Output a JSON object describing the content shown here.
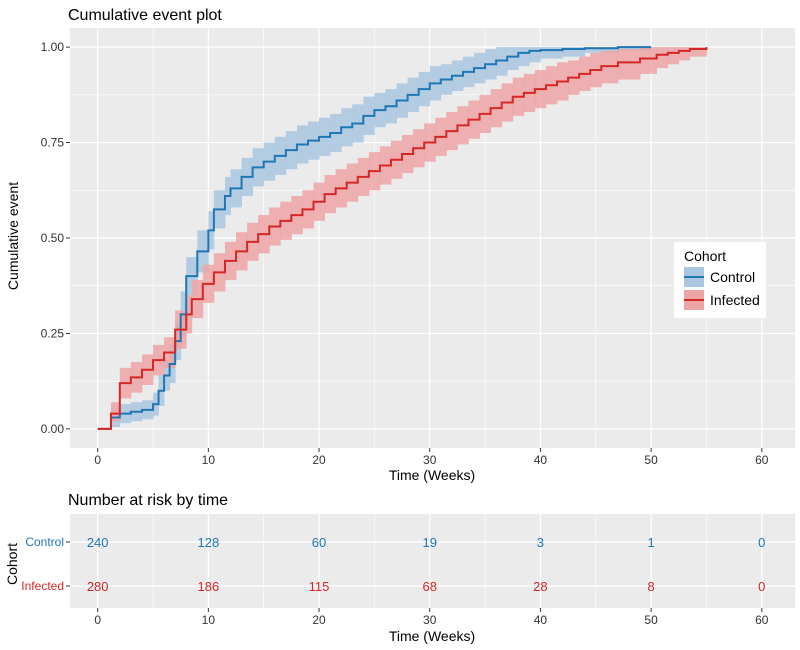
{
  "colors": {
    "panel_bg": "#EBEBEB",
    "grid": "#FFFFFF",
    "tick_text": "#333333",
    "axis_text": "#000000",
    "control": "#1F77B4",
    "control_ci": "#A9C7E0",
    "infected": "#D62728",
    "infected_ci": "#EDA5A5"
  },
  "chart_data": [
    {
      "type": "line",
      "subtype": "step",
      "title": "Cumulative event plot",
      "xlabel": "Time (Weeks)",
      "ylabel": "Cumulative event",
      "xlim": [
        -2.5,
        63
      ],
      "ylim": [
        -0.05,
        1.05
      ],
      "x_ticks": [
        0,
        10,
        20,
        30,
        40,
        50,
        60
      ],
      "x_tick_labels": [
        "0",
        "10",
        "20",
        "30",
        "40",
        "50",
        "60"
      ],
      "y_ticks": [
        0,
        0.25,
        0.5,
        0.75,
        1.0
      ],
      "y_tick_labels": [
        "0.00",
        "0.25",
        "0.50",
        "0.75",
        "1.00"
      ],
      "grid": true,
      "legend": {
        "title": "Cohort",
        "position": "right",
        "entries": [
          "Control",
          "Infected"
        ]
      },
      "series": [
        {
          "name": "Control",
          "color_key": "control",
          "points": [
            [
              0,
              0
            ],
            [
              1,
              0
            ],
            [
              1.2,
              0.03
            ],
            [
              2,
              0.04
            ],
            [
              3,
              0.045
            ],
            [
              4,
              0.05
            ],
            [
              5,
              0.065
            ],
            [
              5.5,
              0.1
            ],
            [
              6,
              0.14
            ],
            [
              6.5,
              0.17
            ],
            [
              7,
              0.23
            ],
            [
              7.5,
              0.3
            ],
            [
              8,
              0.4
            ],
            [
              9,
              0.465
            ],
            [
              10,
              0.52
            ],
            [
              10.5,
              0.575
            ],
            [
              11.5,
              0.61
            ],
            [
              12,
              0.63
            ],
            [
              13,
              0.66
            ],
            [
              14,
              0.685
            ],
            [
              15,
              0.7
            ],
            [
              16,
              0.715
            ],
            [
              17,
              0.73
            ],
            [
              18,
              0.745
            ],
            [
              19,
              0.755
            ],
            [
              20,
              0.765
            ],
            [
              21,
              0.775
            ],
            [
              22,
              0.79
            ],
            [
              23,
              0.8
            ],
            [
              24,
              0.82
            ],
            [
              25,
              0.835
            ],
            [
              26,
              0.845
            ],
            [
              27,
              0.86
            ],
            [
              28,
              0.875
            ],
            [
              29,
              0.89
            ],
            [
              30,
              0.905
            ],
            [
              31,
              0.915
            ],
            [
              32,
              0.925
            ],
            [
              33,
              0.935
            ],
            [
              34,
              0.945
            ],
            [
              35,
              0.955
            ],
            [
              36,
              0.965
            ],
            [
              37,
              0.975
            ],
            [
              38,
              0.985
            ],
            [
              39,
              0.99
            ],
            [
              40,
              0.992
            ],
            [
              42,
              0.995
            ],
            [
              44,
              0.997
            ],
            [
              47,
              1.0
            ],
            [
              50,
              1.0
            ]
          ],
          "ci_lower": [
            0,
            0,
            0.005,
            0.015,
            0.02,
            0.025,
            0.035,
            0.06,
            0.1,
            0.12,
            0.18,
            0.24,
            0.35,
            0.41,
            0.47,
            0.525,
            0.56,
            0.58,
            0.61,
            0.635,
            0.65,
            0.665,
            0.68,
            0.695,
            0.705,
            0.715,
            0.725,
            0.74,
            0.75,
            0.77,
            0.79,
            0.8,
            0.815,
            0.83,
            0.845,
            0.86,
            0.875,
            0.885,
            0.895,
            0.905,
            0.915,
            0.925,
            0.94,
            0.95,
            0.96,
            0.97,
            0.975,
            0.985,
            0.99,
            0.99
          ],
          "ci_upper": [
            0,
            0,
            0.055,
            0.065,
            0.07,
            0.075,
            0.095,
            0.14,
            0.18,
            0.22,
            0.28,
            0.36,
            0.45,
            0.52,
            0.57,
            0.625,
            0.66,
            0.68,
            0.71,
            0.735,
            0.75,
            0.765,
            0.78,
            0.795,
            0.805,
            0.815,
            0.825,
            0.84,
            0.85,
            0.87,
            0.88,
            0.89,
            0.905,
            0.92,
            0.935,
            0.95,
            0.955,
            0.965,
            0.975,
            0.985,
            0.995,
            1.0,
            1.0,
            1.0,
            1.0,
            1.0,
            1.0,
            1.0,
            1.0,
            1.0
          ]
        },
        {
          "name": "Infected",
          "color_key": "infected",
          "points": [
            [
              0,
              0
            ],
            [
              1,
              0
            ],
            [
              1.2,
              0.04
            ],
            [
              2,
              0.12
            ],
            [
              3,
              0.135
            ],
            [
              4,
              0.155
            ],
            [
              5,
              0.18
            ],
            [
              6,
              0.2
            ],
            [
              7,
              0.26
            ],
            [
              8,
              0.3
            ],
            [
              8.5,
              0.34
            ],
            [
              9.5,
              0.38
            ],
            [
              10.5,
              0.41
            ],
            [
              11.5,
              0.44
            ],
            [
              12.5,
              0.465
            ],
            [
              13.5,
              0.49
            ],
            [
              14.5,
              0.51
            ],
            [
              15.5,
              0.53
            ],
            [
              16.5,
              0.545
            ],
            [
              17.5,
              0.56
            ],
            [
              18.5,
              0.575
            ],
            [
              19.5,
              0.595
            ],
            [
              20.5,
              0.615
            ],
            [
              21.5,
              0.63
            ],
            [
              22.5,
              0.645
            ],
            [
              23.5,
              0.66
            ],
            [
              24.5,
              0.675
            ],
            [
              25.5,
              0.69
            ],
            [
              26.5,
              0.705
            ],
            [
              27.5,
              0.72
            ],
            [
              28.5,
              0.735
            ],
            [
              29.5,
              0.75
            ],
            [
              30.5,
              0.765
            ],
            [
              31.5,
              0.78
            ],
            [
              32.5,
              0.795
            ],
            [
              33.5,
              0.81
            ],
            [
              34.5,
              0.825
            ],
            [
              35.5,
              0.84
            ],
            [
              36.5,
              0.855
            ],
            [
              37.5,
              0.87
            ],
            [
              38.5,
              0.88
            ],
            [
              39.5,
              0.89
            ],
            [
              40.5,
              0.9
            ],
            [
              41.5,
              0.91
            ],
            [
              42.5,
              0.92
            ],
            [
              43.5,
              0.93
            ],
            [
              44.5,
              0.94
            ],
            [
              45.5,
              0.95
            ],
            [
              47,
              0.96
            ],
            [
              49,
              0.97
            ],
            [
              50.5,
              0.98
            ],
            [
              51.5,
              0.985
            ],
            [
              52.5,
              0.99
            ],
            [
              53.5,
              0.995
            ],
            [
              55,
              1.0
            ]
          ],
          "ci_lower": [
            0,
            0,
            0.02,
            0.08,
            0.095,
            0.115,
            0.14,
            0.16,
            0.21,
            0.25,
            0.29,
            0.33,
            0.36,
            0.39,
            0.415,
            0.44,
            0.46,
            0.48,
            0.495,
            0.51,
            0.525,
            0.545,
            0.565,
            0.58,
            0.595,
            0.61,
            0.625,
            0.64,
            0.655,
            0.67,
            0.685,
            0.7,
            0.715,
            0.73,
            0.745,
            0.76,
            0.775,
            0.79,
            0.805,
            0.82,
            0.83,
            0.84,
            0.85,
            0.86,
            0.875,
            0.885,
            0.895,
            0.905,
            0.915,
            0.93,
            0.945,
            0.955,
            0.965,
            0.975,
            0.995
          ],
          "ci_upper": [
            0,
            0,
            0.07,
            0.16,
            0.175,
            0.195,
            0.22,
            0.24,
            0.31,
            0.35,
            0.39,
            0.43,
            0.46,
            0.49,
            0.515,
            0.54,
            0.56,
            0.58,
            0.595,
            0.61,
            0.625,
            0.645,
            0.665,
            0.68,
            0.695,
            0.71,
            0.725,
            0.74,
            0.755,
            0.77,
            0.785,
            0.8,
            0.815,
            0.83,
            0.845,
            0.86,
            0.875,
            0.89,
            0.905,
            0.92,
            0.93,
            0.94,
            0.95,
            0.96,
            0.965,
            0.975,
            0.985,
            0.99,
            0.995,
            1.0,
            1.0,
            1.0,
            1.0,
            1.0,
            1.0
          ]
        }
      ]
    },
    {
      "type": "table",
      "title": "Number at risk by time",
      "xlabel": "Time (Weeks)",
      "ylabel": "Cohort",
      "xlim": [
        -2.5,
        63
      ],
      "x_ticks": [
        0,
        10,
        20,
        30,
        40,
        50,
        60
      ],
      "x_tick_labels": [
        "0",
        "10",
        "20",
        "30",
        "40",
        "50",
        "60"
      ],
      "grid": true,
      "rows": [
        {
          "name": "Control",
          "color_key": "control",
          "values": [
            "240",
            "128",
            "60",
            "19",
            "3",
            "1",
            "0"
          ]
        },
        {
          "name": "Infected",
          "color_key": "infected",
          "values": [
            "280",
            "186",
            "115",
            "68",
            "28",
            "8",
            "0"
          ]
        }
      ]
    }
  ]
}
